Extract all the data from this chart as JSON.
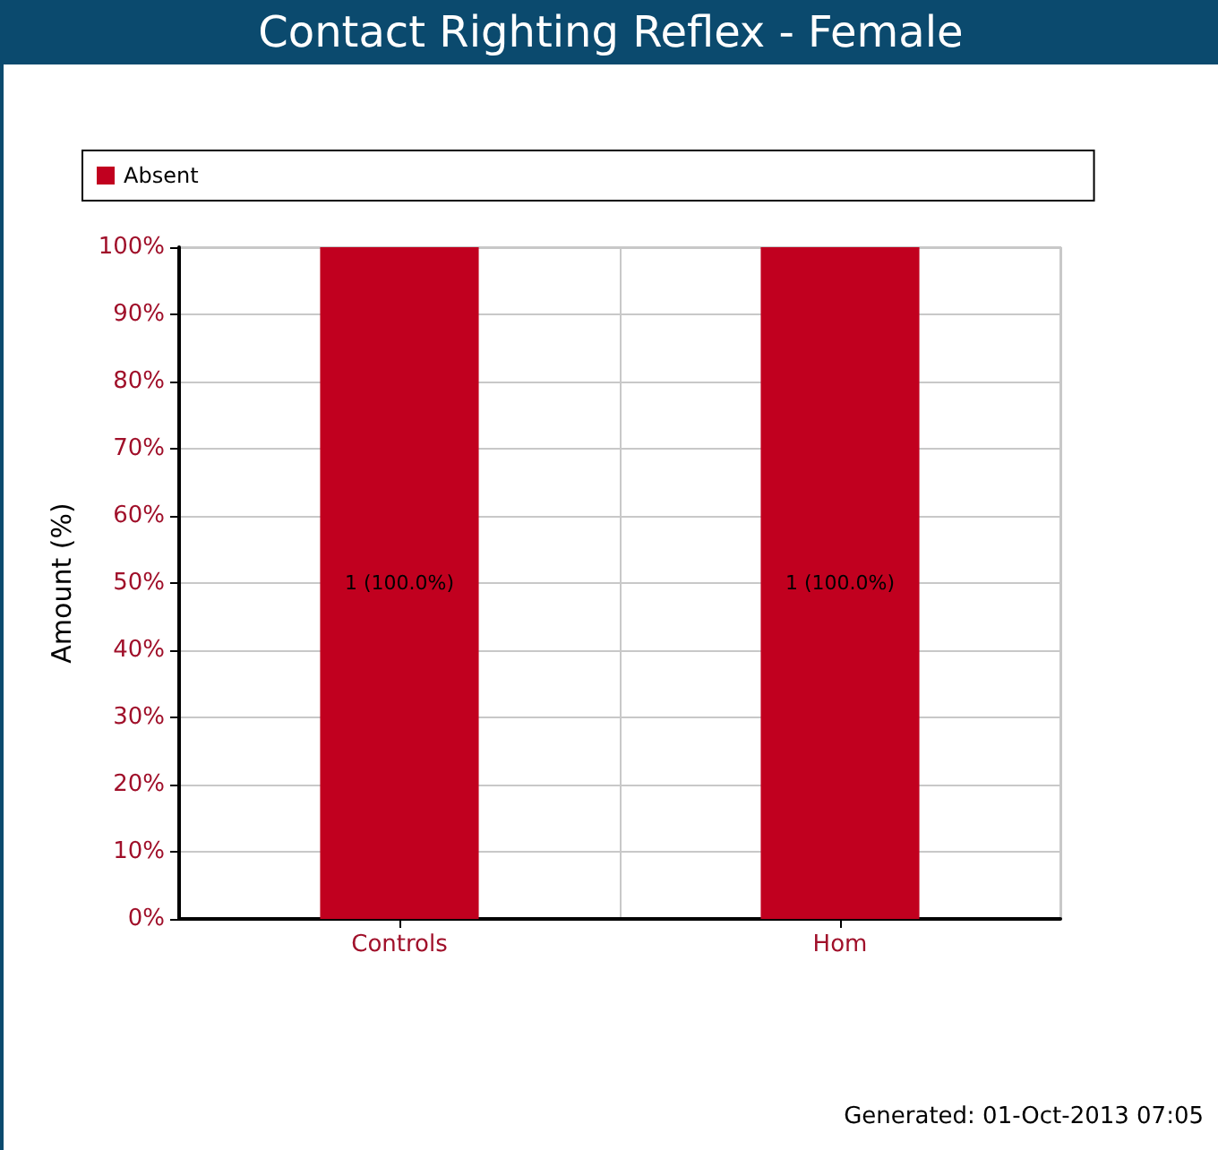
{
  "chart_data": {
    "type": "bar",
    "title": "Contact Righting Reflex - Female",
    "ylabel": "Amount (%)",
    "categories": [
      "Controls",
      "Hom"
    ],
    "series": [
      {
        "name": "Absent",
        "color": "#c1001f",
        "values": [
          100,
          100
        ],
        "value_labels": [
          "1 (100.0%)",
          "1 (100.0%)"
        ]
      }
    ],
    "ylim": [
      0,
      100
    ],
    "yticks": [
      {
        "value": 0,
        "label": "0%"
      },
      {
        "value": 10,
        "label": "10%"
      },
      {
        "value": 20,
        "label": "20%"
      },
      {
        "value": 30,
        "label": "30%"
      },
      {
        "value": 40,
        "label": "40%"
      },
      {
        "value": 50,
        "label": "50%"
      },
      {
        "value": 60,
        "label": "60%"
      },
      {
        "value": 70,
        "label": "70%"
      },
      {
        "value": 80,
        "label": "80%"
      },
      {
        "value": 90,
        "label": "90%"
      },
      {
        "value": 100,
        "label": "100%"
      }
    ],
    "grid": true,
    "legend": "top",
    "annotations": [
      "Generated: 01-Oct-2013 07:05"
    ]
  }
}
